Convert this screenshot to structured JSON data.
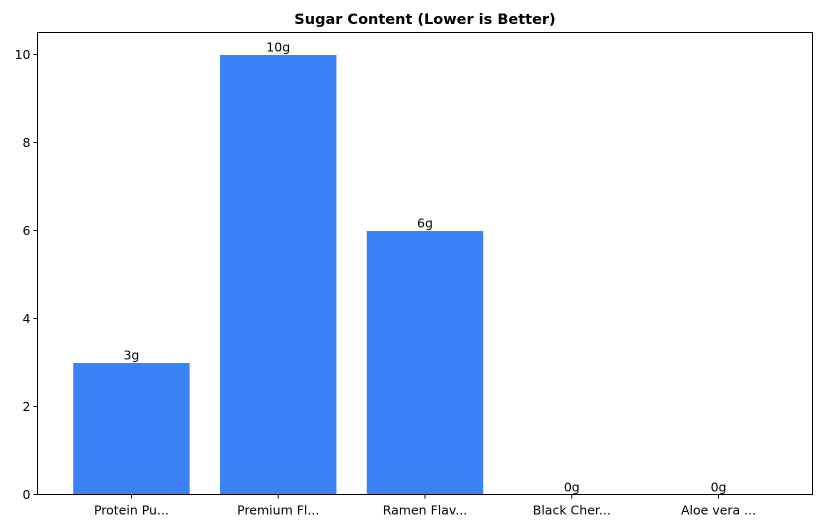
{
  "chart_data": {
    "type": "bar",
    "title": "Sugar Content (Lower is Better)",
    "xlabel": "",
    "ylabel": "",
    "categories": [
      "Protein Pu...",
      "Premium Fl...",
      "Ramen Flav...",
      "Black Cher...",
      "Aloe vera ..."
    ],
    "values": [
      3,
      10,
      6,
      0,
      0
    ],
    "data_labels": [
      "3g",
      "10g",
      "6g",
      "0g",
      "0g"
    ],
    "ylim": [
      0,
      10.5
    ],
    "yticks": [
      0,
      2,
      4,
      6,
      8,
      10
    ],
    "grid": false,
    "bar_color": "#3b82f6",
    "bar_edge_color": "#ffffff"
  }
}
